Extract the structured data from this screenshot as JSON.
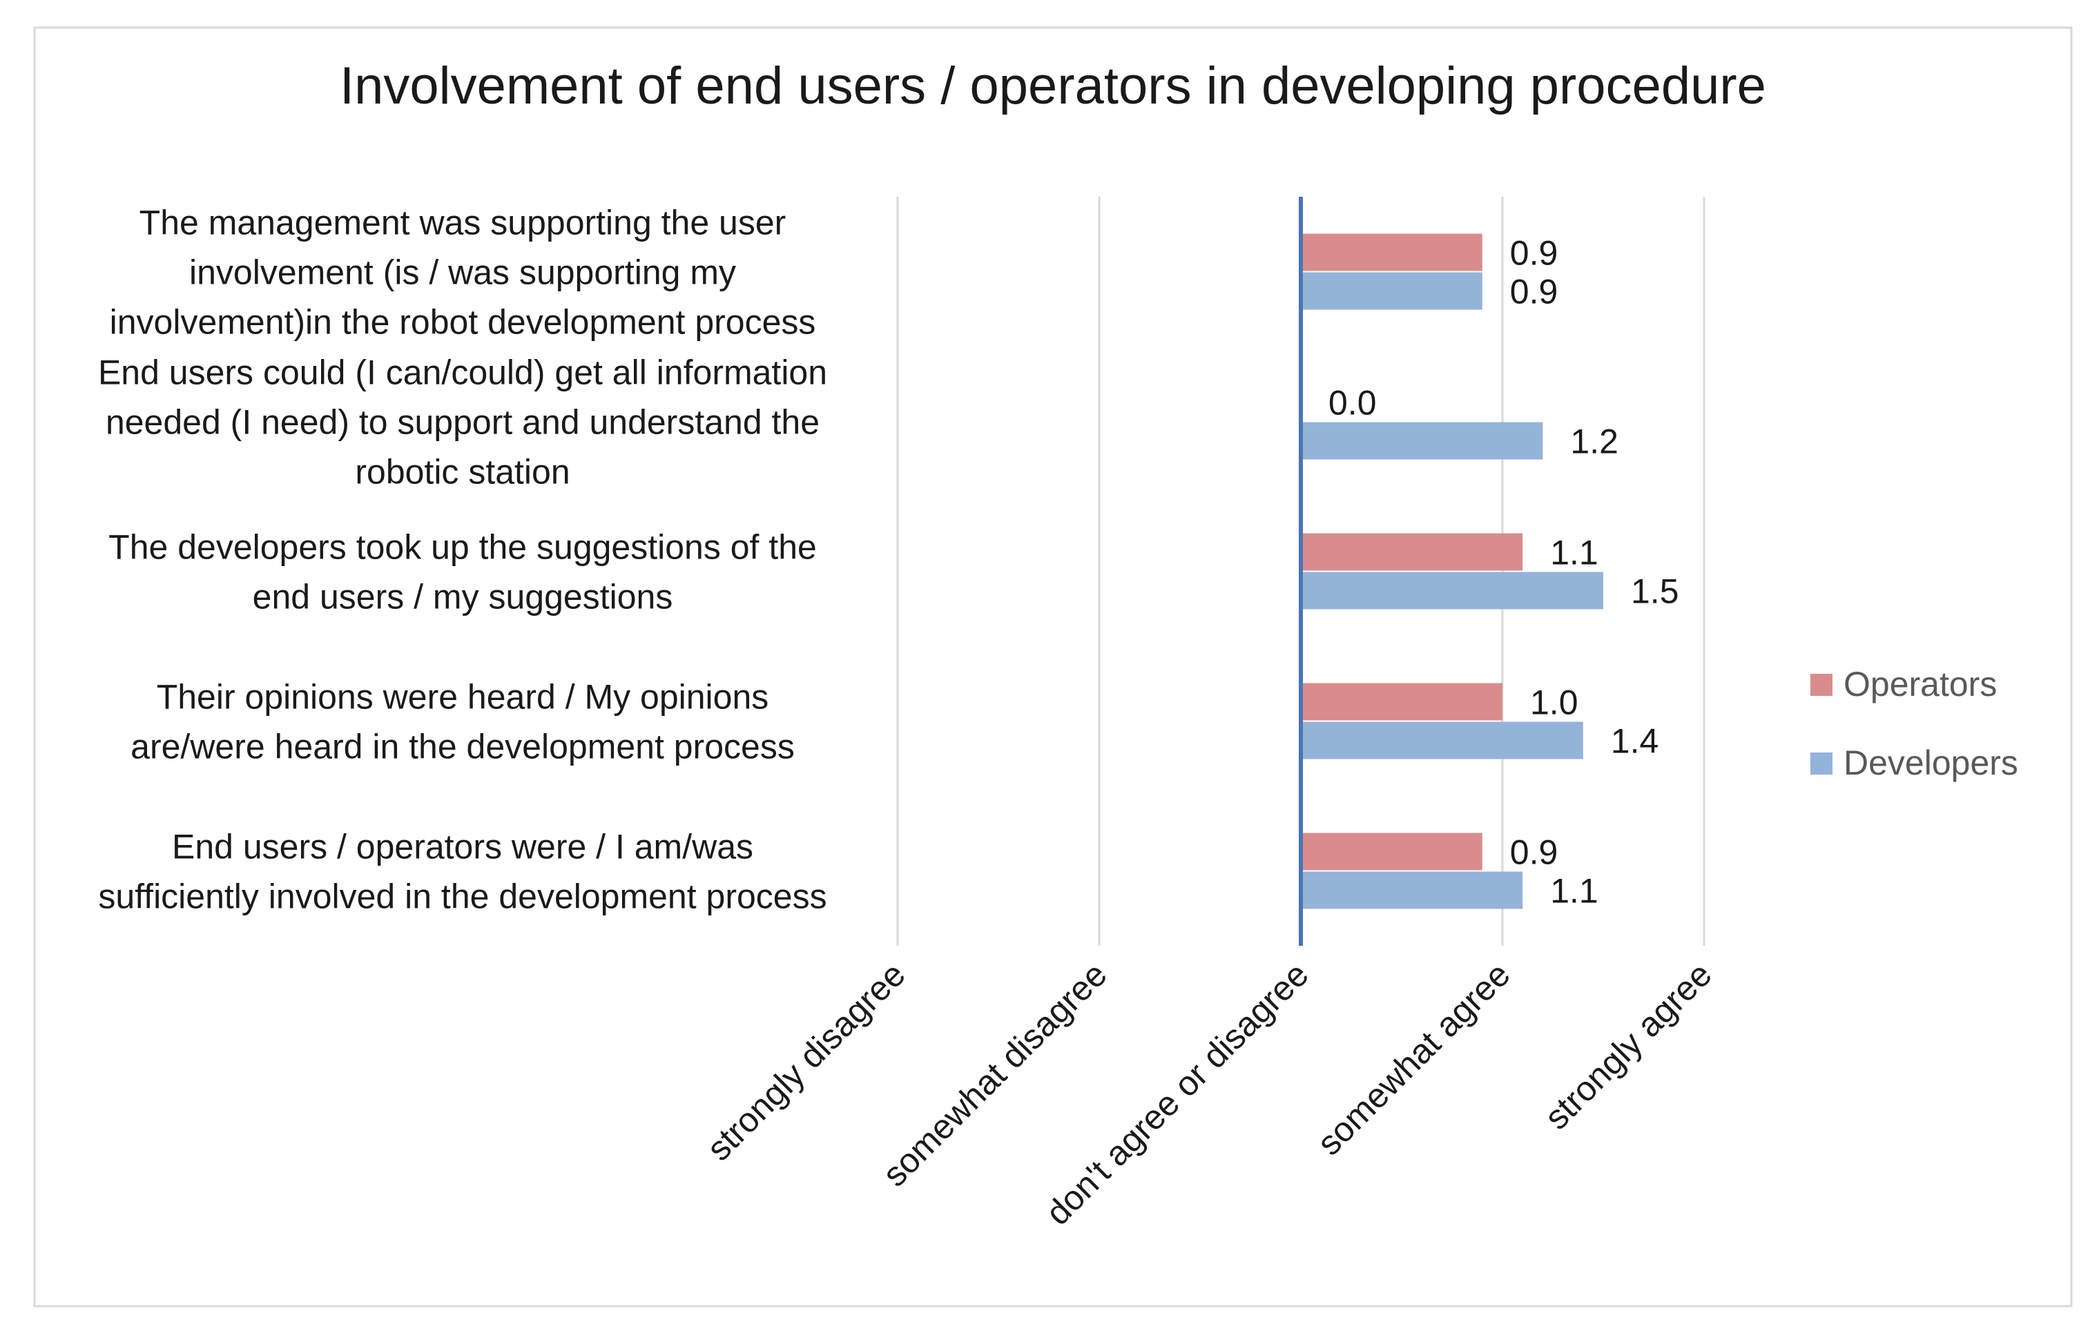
{
  "chart_data": {
    "type": "bar",
    "orientation": "horizontal",
    "title": "Involvement of end users / operators in developing procedure",
    "categories": [
      "The management was supporting the user involvement (is / was supporting my involvement)in the robot development process",
      "End users could (I can/could) get all information needed (I need) to support and understand the robotic station",
      "The developers took up the suggestions of the end users / my suggestions",
      "Their opinions were heard / My opinions are/were heard in the development process",
      "End users / operators  were / I am/was sufficiently involved in the development process"
    ],
    "category_lines": [
      [
        "The management was supporting the user",
        "involvement (is / was supporting my",
        "involvement)in the robot development process"
      ],
      [
        "End users could (I can/could) get all information",
        "needed (I need) to support and understand the",
        "robotic station"
      ],
      [
        "The developers took up the suggestions of the",
        "end users / my suggestions"
      ],
      [
        "Their opinions were heard / My opinions",
        "are/were heard in the development process"
      ],
      [
        "End users / operators  were / I am/was",
        "sufficiently involved in the development process"
      ]
    ],
    "series": [
      {
        "name": "Operators",
        "color": "#d98c8c",
        "values": [
          0.9,
          0.0,
          1.1,
          1.0,
          0.9
        ],
        "labels": [
          "0.9",
          "0.0",
          "1.1",
          "1.0",
          "0.9"
        ]
      },
      {
        "name": "Developers",
        "color": "#94b3d9",
        "values": [
          0.9,
          1.2,
          1.5,
          1.4,
          1.1
        ],
        "labels": [
          "0.9",
          "1.2",
          "1.5",
          "1.4",
          "1.1"
        ]
      }
    ],
    "xlim": [
      -2,
      2
    ],
    "x_ticks": [
      -2,
      -1,
      0,
      1,
      2
    ],
    "x_tick_labels": [
      "strongly disagree",
      "somewhat disagree",
      "don't agree or disagree",
      "somewhat agree",
      "strongly agree"
    ],
    "zero_line_color": "#4a76b0",
    "grid": true,
    "legend": "right",
    "legend_order": [
      "Operators",
      "Developers"
    ]
  }
}
